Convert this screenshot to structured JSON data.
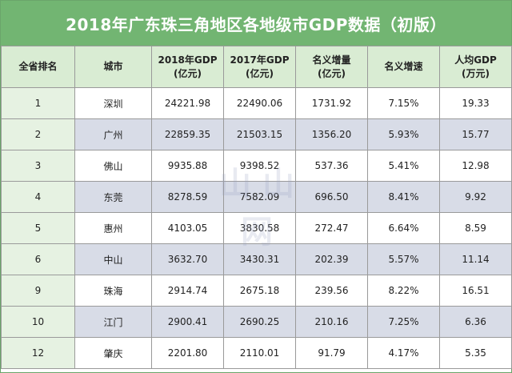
{
  "title": "2018年广东珠三角地区各地级市GDP数据（初版）",
  "watermark": "山山网",
  "headers": [
    {
      "line1": "全省排名",
      "line2": ""
    },
    {
      "line1": "城市",
      "line2": ""
    },
    {
      "line1": "2018年GDP",
      "line2": "(亿元)"
    },
    {
      "line1": "2017年GDP",
      "line2": "(亿元)"
    },
    {
      "line1": "名义增量",
      "line2": "(亿元)"
    },
    {
      "line1": "名义增速",
      "line2": ""
    },
    {
      "line1": "人均GDP",
      "line2": "(万元)"
    }
  ],
  "rows": [
    {
      "rank": "1",
      "city": "深圳",
      "gdp2018": "24221.98",
      "gdp2017": "22490.06",
      "increase": "1731.92",
      "growth": "7.15%",
      "per_capita": "19.33"
    },
    {
      "rank": "2",
      "city": "广州",
      "gdp2018": "22859.35",
      "gdp2017": "21503.15",
      "increase": "1356.20",
      "growth": "5.93%",
      "per_capita": "15.77"
    },
    {
      "rank": "3",
      "city": "佛山",
      "gdp2018": "9935.88",
      "gdp2017": "9398.52",
      "increase": "537.36",
      "growth": "5.41%",
      "per_capita": "12.98"
    },
    {
      "rank": "4",
      "city": "东莞",
      "gdp2018": "8278.59",
      "gdp2017": "7582.09",
      "increase": "696.50",
      "growth": "8.41%",
      "per_capita": "9.92"
    },
    {
      "rank": "5",
      "city": "惠州",
      "gdp2018": "4103.05",
      "gdp2017": "3830.58",
      "increase": "272.47",
      "growth": "6.64%",
      "per_capita": "8.59"
    },
    {
      "rank": "6",
      "city": "中山",
      "gdp2018": "3632.70",
      "gdp2017": "3430.31",
      "increase": "202.39",
      "growth": "5.57%",
      "per_capita": "11.14"
    },
    {
      "rank": "9",
      "city": "珠海",
      "gdp2018": "2914.74",
      "gdp2017": "2675.18",
      "increase": "239.56",
      "growth": "8.22%",
      "per_capita": "16.51"
    },
    {
      "rank": "10",
      "city": "江门",
      "gdp2018": "2900.41",
      "gdp2017": "2690.25",
      "increase": "210.16",
      "growth": "7.25%",
      "per_capita": "6.36"
    },
    {
      "rank": "12",
      "city": "肇庆",
      "gdp2018": "2201.80",
      "gdp2017": "2110.01",
      "increase": "91.79",
      "growth": "4.17%",
      "per_capita": "5.35"
    }
  ]
}
